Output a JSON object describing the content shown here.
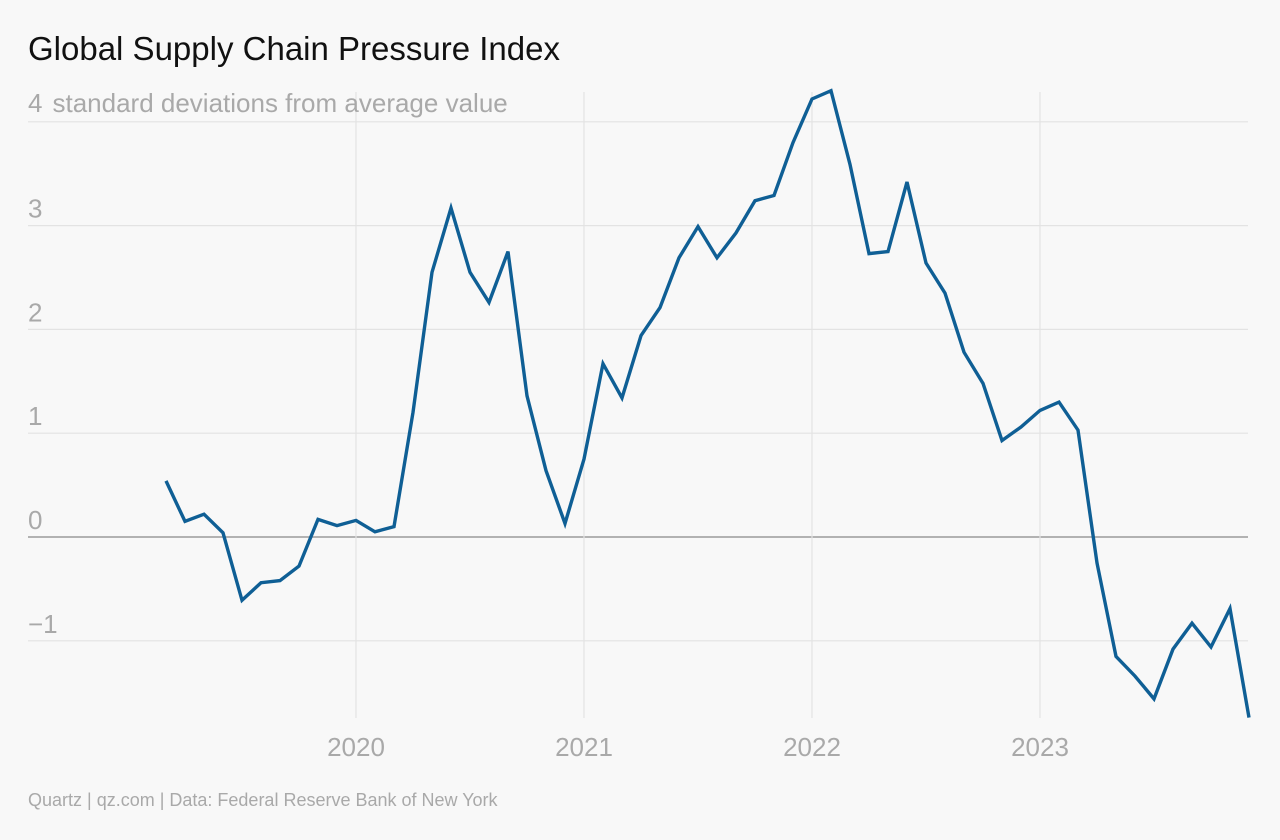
{
  "chart_data": {
    "type": "line",
    "title": "Global Supply Chain Pressure Index",
    "ylabel": "standard deviations from average value",
    "xlabel": "",
    "source": "Quartz | qz.com | Data: Federal Reserve Bank of New York",
    "ylim": [
      -1.8,
      4.3
    ],
    "yticks": [
      4,
      3,
      2,
      1,
      0,
      -1
    ],
    "yticks_labels": [
      "4",
      "3",
      "2",
      "1",
      "0",
      "−1"
    ],
    "xticks": [
      "2020",
      "2021",
      "2022",
      "2023"
    ],
    "grid": true,
    "line_color": "#0f5f95",
    "series": [
      {
        "x": [
          "2019-03",
          "2019-04",
          "2019-05",
          "2019-06",
          "2019-07",
          "2019-08",
          "2019-09",
          "2019-10",
          "2019-11",
          "2019-12",
          "2020-01",
          "2020-02",
          "2020-03",
          "2020-04",
          "2020-05",
          "2020-06",
          "2020-07",
          "2020-08",
          "2020-09",
          "2020-10",
          "2020-11",
          "2020-12",
          "2021-01",
          "2021-02",
          "2021-03",
          "2021-04",
          "2021-05",
          "2021-06",
          "2021-07",
          "2021-08",
          "2021-09",
          "2021-10",
          "2021-11",
          "2021-12",
          "2022-01",
          "2022-02",
          "2022-03",
          "2022-04",
          "2022-05",
          "2022-06",
          "2022-07",
          "2022-08",
          "2022-09",
          "2022-10",
          "2022-11",
          "2022-12",
          "2023-01",
          "2023-02",
          "2023-03",
          "2023-04",
          "2023-05",
          "2023-06",
          "2023-07",
          "2023-08",
          "2023-09",
          "2023-10",
          "2023-11",
          "2023-12"
        ],
        "values": [
          0.54,
          0.15,
          0.22,
          0.04,
          -0.61,
          -0.44,
          -0.42,
          -0.28,
          0.17,
          0.11,
          0.16,
          0.05,
          0.1,
          1.2,
          2.55,
          3.17,
          2.55,
          2.26,
          2.75,
          1.36,
          0.64,
          0.13,
          0.75,
          1.67,
          1.34,
          1.94,
          2.21,
          2.69,
          2.99,
          2.69,
          2.93,
          3.24,
          3.29,
          3.8,
          4.22,
          4.3,
          3.59,
          2.73,
          2.75,
          3.42,
          2.64,
          2.35,
          1.78,
          1.48,
          0.93,
          1.06,
          1.22,
          1.3,
          1.03,
          -0.25,
          -1.15,
          -1.34,
          -1.56,
          -1.08,
          -0.83,
          -1.06,
          -0.69,
          -1.74
        ]
      }
    ]
  }
}
